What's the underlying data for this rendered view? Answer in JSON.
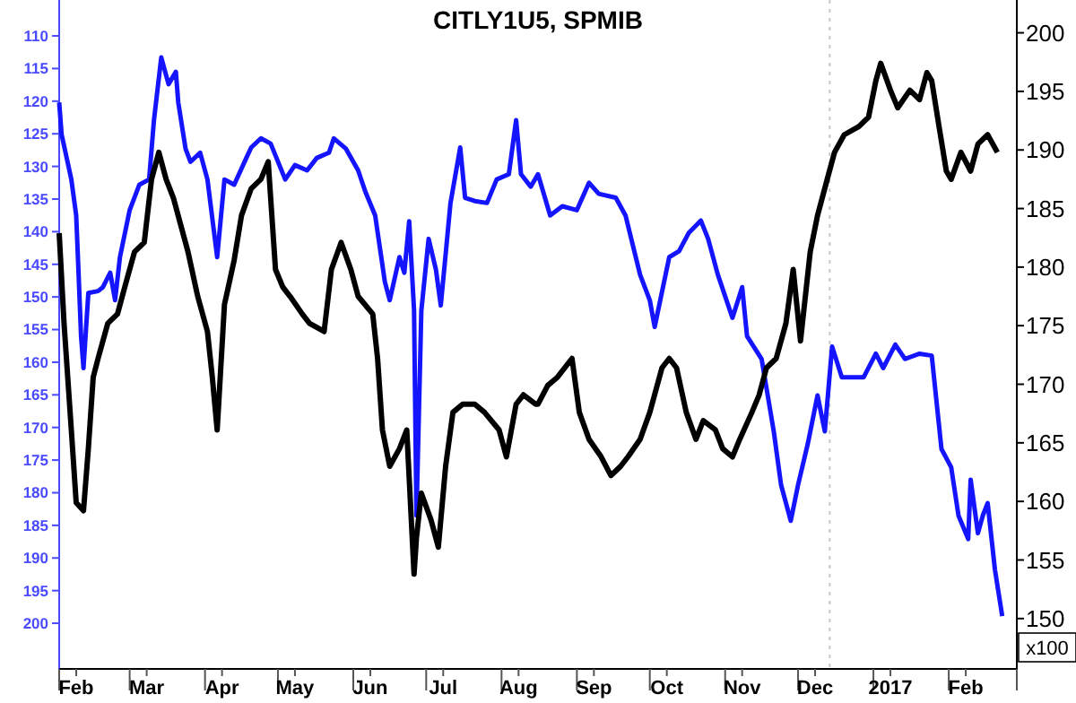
{
  "chart_data": {
    "type": "line",
    "title": "CITLY1U5, SPMIB",
    "line_style": "solid",
    "xlim": [
      "2016-02-01",
      "2017-03-01"
    ],
    "xticks": [
      {
        "value": "2016-02-01",
        "label": null
      },
      {
        "value": "2016-02-08",
        "label": "Feb"
      },
      {
        "value": "2016-03-01",
        "label": null
      },
      {
        "value": "2016-03-08",
        "label": "Mar"
      },
      {
        "value": "2016-04-01",
        "label": null
      },
      {
        "value": "2016-04-08",
        "label": "Apr"
      },
      {
        "value": "2016-05-01",
        "label": null
      },
      {
        "value": "2016-05-08",
        "label": "May"
      },
      {
        "value": "2016-06-01",
        "label": null
      },
      {
        "value": "2016-06-08",
        "label": "Jun"
      },
      {
        "value": "2016-07-01",
        "label": null
      },
      {
        "value": "2016-07-08",
        "label": "Jul"
      },
      {
        "value": "2016-08-01",
        "label": null
      },
      {
        "value": "2016-08-08",
        "label": "Aug"
      },
      {
        "value": "2016-09-01",
        "label": null
      },
      {
        "value": "2016-09-08",
        "label": "Sep"
      },
      {
        "value": "2016-10-01",
        "label": null
      },
      {
        "value": "2016-10-08",
        "label": "Oct"
      },
      {
        "value": "2016-11-01",
        "label": null
      },
      {
        "value": "2016-11-08",
        "label": "Nov"
      },
      {
        "value": "2016-12-01",
        "label": null
      },
      {
        "value": "2016-12-08",
        "label": "Dec"
      },
      {
        "value": "2017-01-01",
        "label": null
      },
      {
        "value": "2017-01-08",
        "label": "2017"
      },
      {
        "value": "2017-02-01",
        "label": null
      },
      {
        "value": "2017-02-08",
        "label": "Feb"
      },
      {
        "value": "2017-03-01",
        "label": null
      }
    ],
    "ylim": [
      207,
      104.5
    ],
    "yticks": [
      110,
      115,
      120,
      125,
      130,
      135,
      140,
      145,
      150,
      155,
      160,
      165,
      170,
      175,
      180,
      185,
      190,
      195,
      200
    ],
    "y2lim": [
      145.7,
      202.8
    ],
    "y2ticks": [
      150,
      155,
      160,
      165,
      170,
      175,
      180,
      185,
      190,
      195,
      200
    ],
    "ref_lines": [
      {
        "axis": "x",
        "value": "2016-12-14",
        "label": null,
        "color": "#c8c8c8",
        "line_style": "dotted"
      }
    ],
    "annotations": [
      "x100"
    ],
    "series": [
      {
        "color": "#1414ff",
        "x": [
          "2016-02-01",
          "2016-02-02",
          "2016-02-06",
          "2016-02-08",
          "2016-02-09",
          "2016-02-10",
          "2016-02-11",
          "2016-02-13",
          "2016-02-17",
          "2016-02-19",
          "2016-02-22",
          "2016-02-24",
          "2016-02-26",
          "2016-03-01",
          "2016-03-05",
          "2016-03-09",
          "2016-03-11",
          "2016-03-14",
          "2016-03-17",
          "2016-03-20",
          "2016-03-21",
          "2016-03-24",
          "2016-03-26",
          "2016-03-30",
          "2016-04-02",
          "2016-04-06",
          "2016-04-09",
          "2016-04-13",
          "2016-04-18",
          "2016-04-20",
          "2016-04-24",
          "2016-04-28",
          "2016-05-04",
          "2016-05-08",
          "2016-05-13",
          "2016-05-17",
          "2016-05-22",
          "2016-05-24",
          "2016-05-29",
          "2016-06-03",
          "2016-06-06",
          "2016-06-10",
          "2016-06-14",
          "2016-06-16",
          "2016-06-20",
          "2016-06-22",
          "2016-06-24",
          "2016-06-26",
          "2016-06-27",
          "2016-06-29",
          "2016-07-02",
          "2016-07-05",
          "2016-07-07",
          "2016-07-11",
          "2016-07-15",
          "2016-07-17",
          "2016-07-21",
          "2016-07-26",
          "2016-07-30",
          "2016-08-04",
          "2016-08-07",
          "2016-08-09",
          "2016-08-13",
          "2016-08-16",
          "2016-08-21",
          "2016-08-26",
          "2016-09-01",
          "2016-09-06",
          "2016-09-10",
          "2016-09-17",
          "2016-09-21",
          "2016-09-27",
          "2016-10-01",
          "2016-10-03",
          "2016-10-09",
          "2016-10-13",
          "2016-10-17",
          "2016-10-22",
          "2016-10-25",
          "2016-10-29",
          "2016-11-04",
          "2016-11-08",
          "2016-11-10",
          "2016-11-16",
          "2016-11-21",
          "2016-11-24",
          "2016-11-28",
          "2016-12-01",
          "2016-12-05",
          "2016-12-09",
          "2016-12-12",
          "2016-12-15",
          "2016-12-19",
          "2016-12-28",
          "2017-01-02",
          "2017-01-05",
          "2017-01-10",
          "2017-01-14",
          "2017-01-20",
          "2017-01-25",
          "2017-01-29",
          "2017-02-02",
          "2017-02-05",
          "2017-02-09",
          "2017-02-10",
          "2017-02-13",
          "2017-02-15",
          "2017-02-17",
          "2017-02-20",
          "2017-02-23"
        ],
        "values": [
          120.2,
          125.1,
          132.0,
          137.5,
          146.6,
          156.0,
          160.9,
          149.4,
          149.1,
          148.5,
          146.3,
          150.5,
          143.9,
          136.7,
          132.8,
          132.0,
          122.9,
          113.3,
          117.4,
          115.5,
          120.2,
          127.3,
          129.3,
          127.9,
          132.0,
          143.9,
          132.0,
          132.8,
          128.7,
          127.1,
          125.7,
          126.5,
          132.0,
          129.8,
          130.6,
          128.7,
          127.9,
          125.7,
          127.3,
          130.6,
          133.9,
          137.5,
          147.7,
          150.5,
          143.9,
          146.3,
          138.4,
          152.0,
          183.5,
          152.1,
          141.1,
          145.8,
          151.3,
          135.6,
          127.1,
          134.8,
          135.3,
          135.6,
          132.0,
          131.2,
          122.9,
          131.2,
          133.1,
          131.2,
          137.5,
          136.1,
          136.7,
          132.5,
          134.2,
          134.8,
          137.5,
          146.6,
          150.5,
          154.6,
          143.9,
          143.0,
          140.2,
          138.3,
          141.1,
          146.6,
          153.2,
          148.5,
          156.0,
          159.5,
          170.6,
          178.8,
          184.3,
          178.8,
          172.5,
          165.1,
          170.6,
          157.6,
          162.3,
          162.3,
          158.7,
          160.9,
          157.3,
          159.5,
          158.7,
          159.0,
          173.3,
          176.1,
          183.5,
          187.1,
          178.0,
          186.2,
          183.5,
          181.6,
          191.8,
          198.9
        ]
      },
      {
        "color": "#000000",
        "axis": "y2",
        "x": [
          "2016-02-01",
          "2016-02-03",
          "2016-02-06",
          "2016-02-08",
          "2016-02-11",
          "2016-02-13",
          "2016-02-15",
          "2016-02-17",
          "2016-02-21",
          "2016-02-25",
          "2016-02-28",
          "2016-03-03",
          "2016-03-07",
          "2016-03-10",
          "2016-03-13",
          "2016-03-16",
          "2016-03-19",
          "2016-03-22",
          "2016-03-25",
          "2016-03-29",
          "2016-04-02",
          "2016-04-04",
          "2016-04-06",
          "2016-04-09",
          "2016-04-13",
          "2016-04-16",
          "2016-04-20",
          "2016-04-24",
          "2016-04-27",
          "2016-04-30",
          "2016-05-03",
          "2016-05-06",
          "2016-05-11",
          "2016-05-14",
          "2016-05-20",
          "2016-05-23",
          "2016-05-27",
          "2016-05-31",
          "2016-06-03",
          "2016-06-09",
          "2016-06-11",
          "2016-06-13",
          "2016-06-16",
          "2016-06-20",
          "2016-06-23",
          "2016-06-26",
          "2016-06-27",
          "2016-06-29",
          "2016-07-03",
          "2016-07-06",
          "2016-07-09",
          "2016-07-12",
          "2016-07-16",
          "2016-07-21",
          "2016-07-25",
          "2016-07-31",
          "2016-08-03",
          "2016-08-07",
          "2016-08-10",
          "2016-08-15",
          "2016-08-16",
          "2016-08-20",
          "2016-08-24",
          "2016-08-30",
          "2016-09-02",
          "2016-09-06",
          "2016-09-11",
          "2016-09-15",
          "2016-09-19",
          "2016-09-22",
          "2016-09-27",
          "2016-10-01",
          "2016-10-06",
          "2016-10-09",
          "2016-10-12",
          "2016-10-16",
          "2016-10-20",
          "2016-10-23",
          "2016-10-28",
          "2016-10-31",
          "2016-11-04",
          "2016-11-07",
          "2016-11-12",
          "2016-11-15",
          "2016-11-18",
          "2016-11-22",
          "2016-11-26",
          "2016-11-29",
          "2016-12-02",
          "2016-12-06",
          "2016-12-09",
          "2016-12-13",
          "2016-12-16",
          "2016-12-20",
          "2016-12-26",
          "2016-12-30",
          "2017-01-02",
          "2017-01-04",
          "2017-01-08",
          "2017-01-11",
          "2017-01-16",
          "2017-01-20",
          "2017-01-23",
          "2017-01-25",
          "2017-01-28",
          "2017-01-31",
          "2017-02-02",
          "2017-02-06",
          "2017-02-10",
          "2017-02-13",
          "2017-02-17",
          "2017-02-21"
        ],
        "values": [
          182.9,
          175.2,
          166.1,
          159.9,
          159.2,
          164.5,
          170.6,
          172.2,
          175.2,
          176.0,
          178.3,
          181.3,
          182.1,
          187.5,
          189.8,
          187.5,
          185.9,
          183.6,
          181.3,
          177.5,
          174.5,
          170.6,
          166.1,
          176.8,
          180.6,
          184.4,
          186.7,
          187.5,
          189.0,
          179.8,
          178.3,
          177.5,
          176.0,
          175.2,
          174.5,
          179.8,
          182.1,
          179.8,
          177.5,
          176.0,
          172.2,
          166.1,
          163.0,
          164.5,
          166.1,
          153.8,
          156.9,
          160.7,
          158.4,
          156.1,
          163.0,
          167.6,
          168.3,
          168.3,
          167.6,
          166.1,
          163.8,
          168.3,
          169.1,
          168.3,
          168.3,
          169.9,
          170.6,
          172.2,
          167.6,
          165.3,
          163.8,
          162.2,
          163.0,
          163.8,
          165.3,
          167.6,
          171.4,
          172.2,
          171.4,
          167.6,
          165.3,
          166.9,
          166.1,
          164.5,
          163.8,
          165.3,
          167.6,
          169.1,
          171.4,
          172.2,
          175.2,
          179.8,
          173.7,
          181.3,
          184.4,
          187.5,
          189.8,
          191.3,
          192.0,
          192.8,
          195.9,
          197.4,
          195.1,
          193.6,
          195.1,
          194.3,
          196.6,
          195.9,
          192.0,
          188.2,
          187.5,
          189.8,
          188.2,
          190.5,
          191.3,
          189.8
        ]
      }
    ]
  }
}
